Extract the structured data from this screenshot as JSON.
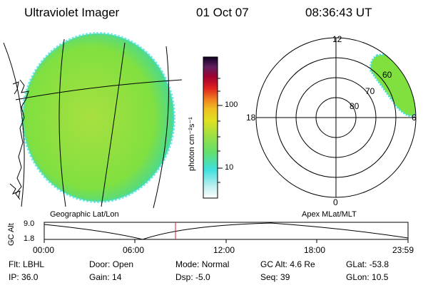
{
  "header": {
    "instrument": "Ultraviolet Imager",
    "date": "01 Oct 07",
    "time": "08:36:43 UT"
  },
  "colorbar": {
    "unit_label": "photon cm⁻²s⁻¹",
    "ticks": [
      "100",
      "10"
    ]
  },
  "panels": {
    "geo_label": "Geographic Lat/Lon",
    "apex_label": "Apex MLat/MLT"
  },
  "polar_plot": {
    "mlt_labels": {
      "top": "12",
      "left": "18",
      "right": "6",
      "bottom": "0"
    },
    "mlat_labels": [
      "60",
      "70",
      "80"
    ]
  },
  "altitude_plot": {
    "ylabel": "GC Alt",
    "yticks": [
      "9.0",
      "1.8"
    ],
    "xticks": [
      "00:00",
      "06:00",
      "12:00",
      "18:00",
      "23:59"
    ],
    "current_time_fraction": 0.361
  },
  "status": {
    "row1": [
      {
        "key": "Flt:",
        "val": "LBHL"
      },
      {
        "key": "Door:",
        "val": "Open"
      },
      {
        "key": "Mode:",
        "val": "Normal"
      },
      {
        "key": "GC Alt:",
        "val": "4.6 Re"
      },
      {
        "key": "GLat:",
        "val": "-53.8"
      }
    ],
    "row2": [
      {
        "key": "IP:",
        "val": "36.0"
      },
      {
        "key": "Gain:",
        "val": "14"
      },
      {
        "key": "Dsp:",
        "val": "-5.0"
      },
      {
        "key": "Seq:",
        "val": "39"
      },
      {
        "key": "GLon:",
        "val": "10.5"
      }
    ]
  },
  "colors": {
    "aurora_green": "#7fe040",
    "aurora_cyan": "#40e0e0",
    "marker_red": "#d02020"
  }
}
